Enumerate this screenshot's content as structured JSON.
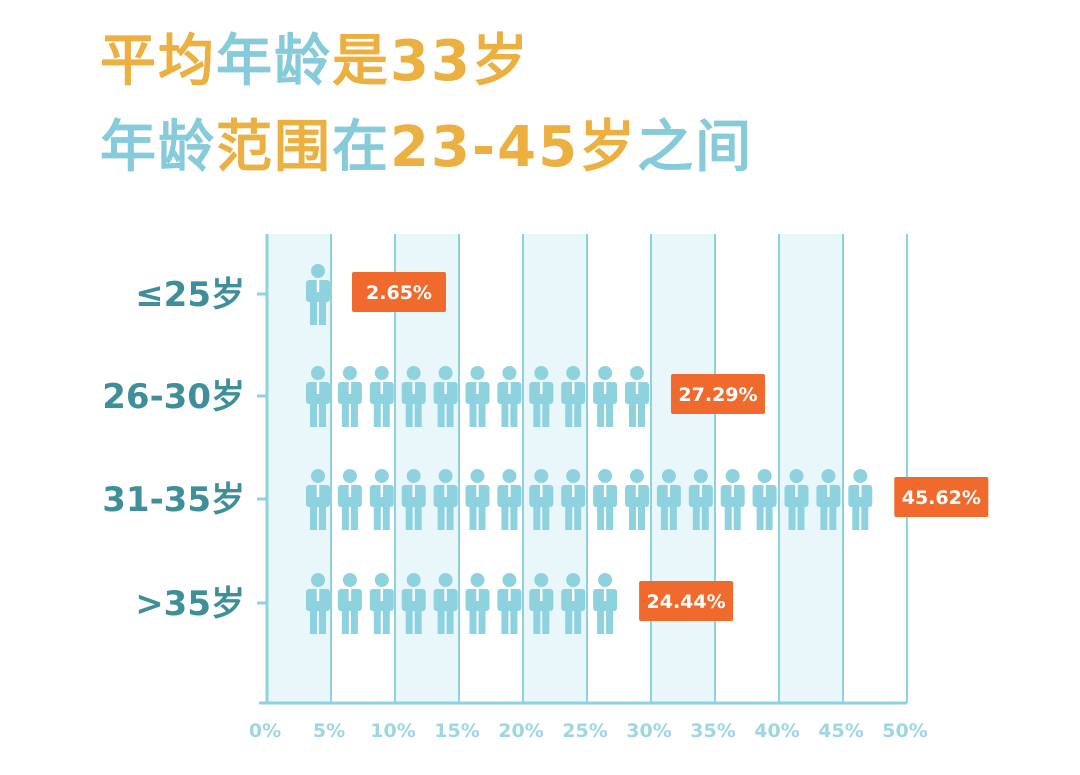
{
  "title": {
    "line1": [
      {
        "text": "平均",
        "color": "#EBB040"
      },
      {
        "text": "年龄",
        "color": "#86CBD9"
      },
      {
        "text": "是",
        "color": "#EBB040"
      },
      {
        "text": "33岁",
        "color": "#EBB040"
      }
    ],
    "line2": [
      {
        "text": "年龄",
        "color": "#86CBD9"
      },
      {
        "text": "范围",
        "color": "#EBB040"
      },
      {
        "text": "在",
        "color": "#86CBD9"
      },
      {
        "text": "23-45岁",
        "color": "#EBB040"
      },
      {
        "text": "之间",
        "color": "#86CBD9"
      }
    ]
  },
  "colors": {
    "icon": "#8FD2DF",
    "axis": "#8FD2DF",
    "grid": "#8FD2DF",
    "band": "#EAF7FA",
    "badge": "#EF6A2C",
    "category_text": "#3E8F98",
    "tick_text": "#9ED6E2"
  },
  "chart_data": {
    "type": "bar",
    "orientation": "horizontal",
    "mark": "pictogram",
    "categories": [
      "≤25岁",
      "26-30岁",
      "31-35岁",
      ">35岁"
    ],
    "values": [
      2.65,
      27.29,
      45.62,
      24.44
    ],
    "value_labels": [
      "2.65%",
      "27.29%",
      "45.62%",
      "24.44%"
    ],
    "icon_counts": [
      1,
      11,
      18,
      10
    ],
    "x_ticks": [
      "0%",
      "5%",
      "10%",
      "15%",
      "20%",
      "25%",
      "30%",
      "35%",
      "40%",
      "45%",
      "50%"
    ],
    "xlim": [
      0,
      50
    ],
    "grid": true
  }
}
